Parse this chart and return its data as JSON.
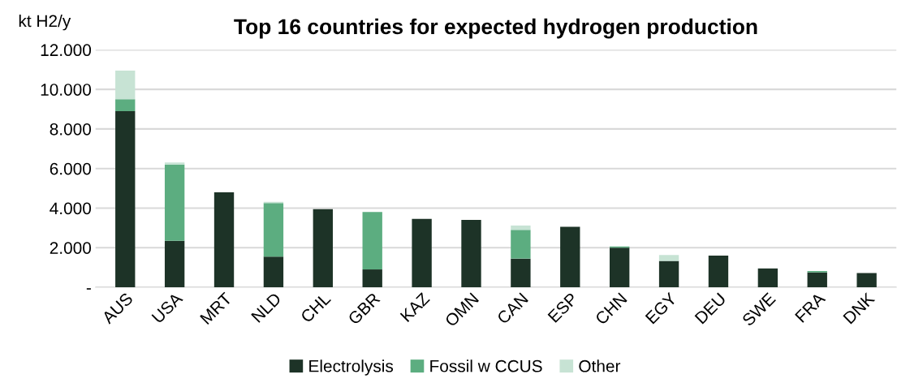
{
  "chart_data": {
    "type": "bar",
    "title": "Top 16 countries for expected hydrogen production",
    "ylabel": "kt H2/y",
    "categories": [
      "AUS",
      "USA",
      "MRT",
      "NLD",
      "CHL",
      "GBR",
      "KAZ",
      "OMN",
      "CAN",
      "ESP",
      "CHN",
      "EGY",
      "DEU",
      "SWE",
      "FRA",
      "DNK"
    ],
    "stacked": true,
    "series": [
      {
        "name": "Electrolysis",
        "color": "#1d3327",
        "values": [
          8900,
          2350,
          4800,
          1550,
          3950,
          900,
          3450,
          3400,
          1450,
          3050,
          2000,
          1330,
          1600,
          950,
          750,
          720
        ]
      },
      {
        "name": "Fossil w CCUS",
        "color": "#5cad80",
        "values": [
          600,
          3850,
          0,
          2700,
          0,
          2900,
          0,
          0,
          1450,
          0,
          60,
          0,
          0,
          0,
          70,
          0
        ]
      },
      {
        "name": "Other",
        "color": "#c7e3d4",
        "values": [
          1450,
          100,
          0,
          70,
          0,
          0,
          0,
          0,
          220,
          0,
          0,
          300,
          0,
          0,
          0,
          0
        ]
      }
    ],
    "ylim": [
      0,
      12000
    ],
    "yticks": [
      {
        "value": 0,
        "label": "-"
      },
      {
        "value": 2000,
        "label": "2.000"
      },
      {
        "value": 4000,
        "label": "4.000"
      },
      {
        "value": 6000,
        "label": "6.000"
      },
      {
        "value": 8000,
        "label": "8.000"
      },
      {
        "value": 10000,
        "label": "10.000"
      },
      {
        "value": 12000,
        "label": "12.000"
      }
    ],
    "grid": "y",
    "legend": "bottom"
  }
}
